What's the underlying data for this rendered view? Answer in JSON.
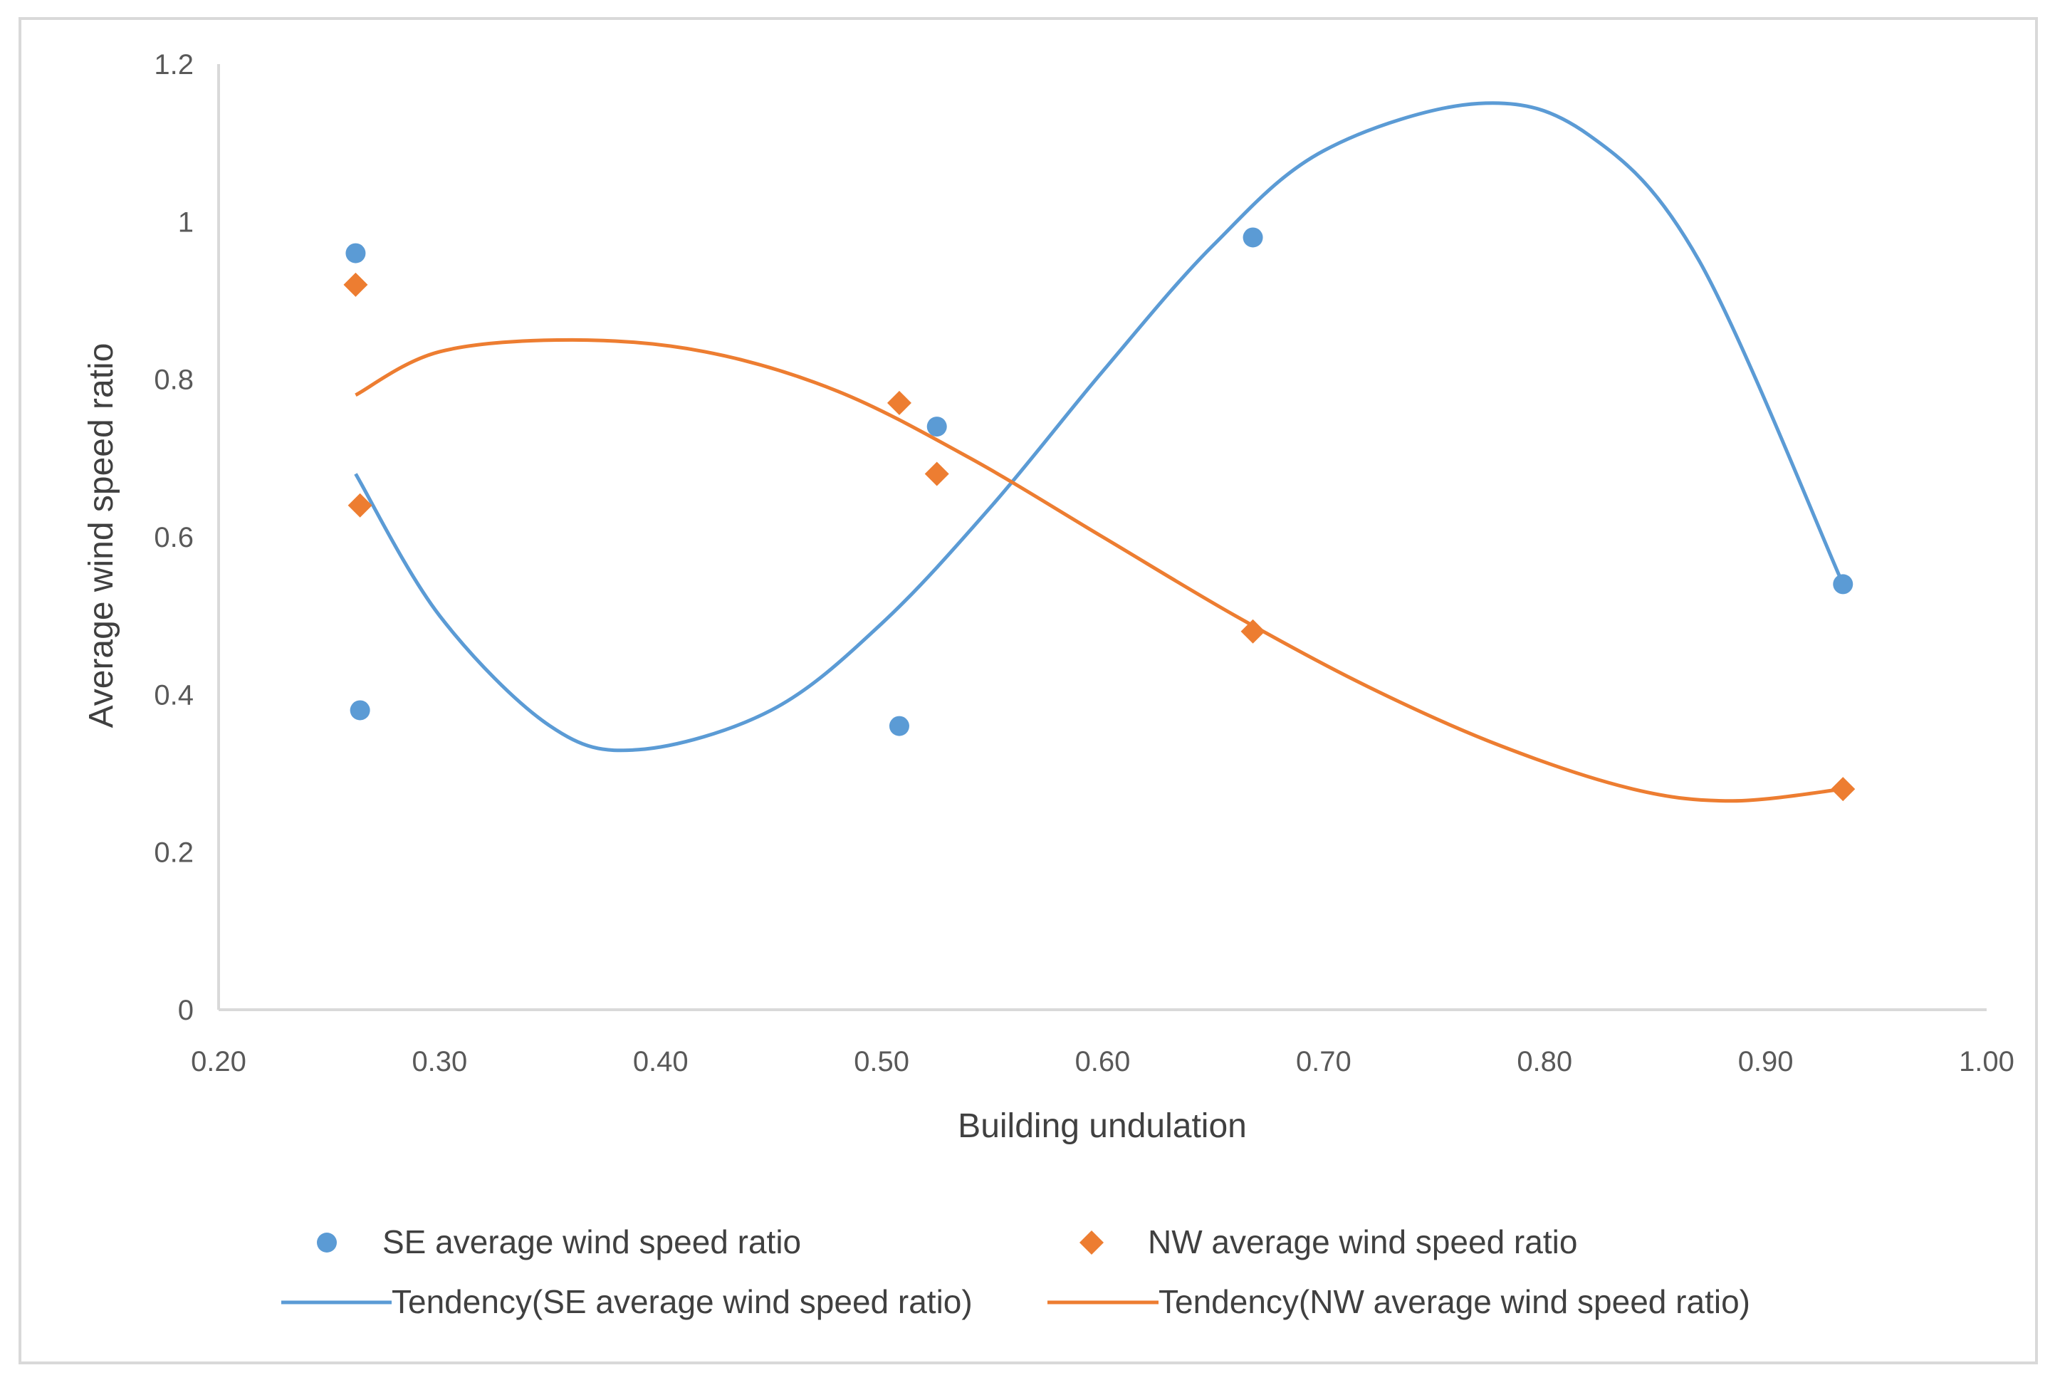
{
  "chart_data": {
    "type": "scatter",
    "title": "",
    "xlabel": "Building undulation",
    "ylabel": "Average wind speed ratio",
    "xlim": [
      0.2,
      1.0
    ],
    "ylim": [
      0,
      1.2
    ],
    "x_ticks": [
      "0.20",
      "0.30",
      "0.40",
      "0.50",
      "0.60",
      "0.70",
      "0.80",
      "0.90",
      "1.00"
    ],
    "x_tick_values": [
      0.2,
      0.3,
      0.4,
      0.5,
      0.6,
      0.7,
      0.8,
      0.9,
      1.0
    ],
    "y_ticks": [
      "0",
      "0.2",
      "0.4",
      "0.6",
      "0.8",
      "1",
      "1.2"
    ],
    "y_tick_values": [
      0,
      0.2,
      0.4,
      0.6,
      0.8,
      1.0,
      1.2
    ],
    "grid": false,
    "legend_position": "bottom",
    "series": [
      {
        "name": "SE average wind speed ratio",
        "marker": "circle",
        "color": "#5b9bd5",
        "points": [
          {
            "x": 0.262,
            "y": 0.96
          },
          {
            "x": 0.264,
            "y": 0.38
          },
          {
            "x": 0.508,
            "y": 0.36
          },
          {
            "x": 0.525,
            "y": 0.74
          },
          {
            "x": 0.668,
            "y": 0.98
          },
          {
            "x": 0.935,
            "y": 0.54
          }
        ]
      },
      {
        "name": "NW average wind speed ratio",
        "marker": "diamond",
        "color": "#ed7d31",
        "points": [
          {
            "x": 0.262,
            "y": 0.92
          },
          {
            "x": 0.264,
            "y": 0.64
          },
          {
            "x": 0.508,
            "y": 0.77
          },
          {
            "x": 0.525,
            "y": 0.68
          },
          {
            "x": 0.668,
            "y": 0.48
          },
          {
            "x": 0.935,
            "y": 0.28
          }
        ]
      }
    ],
    "trendlines": [
      {
        "name": "Tendency(SE average wind speed ratio)",
        "color": "#5b9bd5",
        "x": [
          0.262,
          0.3,
          0.35,
          0.39,
          0.45,
          0.5,
          0.55,
          0.6,
          0.65,
          0.7,
          0.77,
          0.82,
          0.87,
          0.935
        ],
        "y": [
          0.68,
          0.5,
          0.36,
          0.33,
          0.38,
          0.49,
          0.64,
          0.81,
          0.97,
          1.09,
          1.15,
          1.11,
          0.95,
          0.54
        ]
      },
      {
        "name": "Tendency(NW average wind speed ratio)",
        "color": "#ed7d31",
        "x": [
          0.262,
          0.3,
          0.36,
          0.42,
          0.48,
          0.54,
          0.6,
          0.66,
          0.72,
          0.78,
          0.84,
          0.885,
          0.935
        ],
        "y": [
          0.78,
          0.835,
          0.85,
          0.835,
          0.785,
          0.7,
          0.6,
          0.5,
          0.41,
          0.335,
          0.28,
          0.265,
          0.28
        ]
      }
    ]
  },
  "legend": {
    "se_points": "SE average wind speed ratio",
    "nw_points": "NW average wind speed ratio",
    "se_trend": "Tendency(SE average wind speed ratio)",
    "nw_trend": "Tendency(NW average wind speed ratio)"
  }
}
